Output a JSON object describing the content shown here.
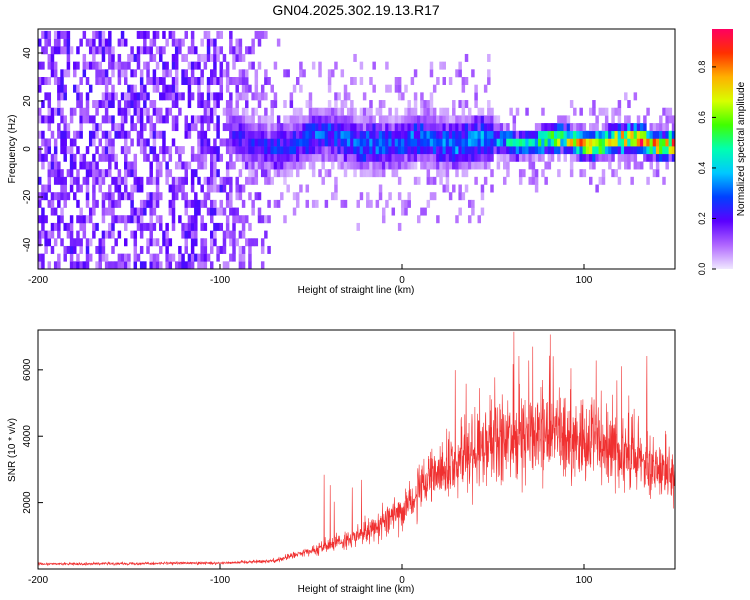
{
  "title": "GN04.2025.302.19.13.R17",
  "chart_data": [
    {
      "type": "heatmap",
      "xlabel": "Height of straight line (km)",
      "ylabel": "Frequency (Hz)",
      "xlim": [
        -200,
        150
      ],
      "ylim": [
        -50,
        50
      ],
      "x_ticks": [
        -200,
        -100,
        0,
        100
      ],
      "x_tick_labels": [
        "-200",
        "-100",
        "0",
        "100"
      ],
      "y_ticks": [
        -40,
        -20,
        0,
        20,
        40
      ],
      "y_tick_labels": [
        "-40",
        "-20",
        "0",
        "20",
        "40"
      ],
      "colorbar": {
        "label": "Normalized spectral amplitude",
        "range": [
          0,
          0.95
        ],
        "ticks": [
          0,
          0.2,
          0.4,
          0.6,
          0.8
        ],
        "tick_labels": [
          "0.0",
          "0.2",
          "0.4",
          "0.6",
          "0.8"
        ],
        "colormap": [
          "#f0e8ff",
          "#b066ff",
          "#5a00ff",
          "#0040ff",
          "#00c8ff",
          "#00ffb0",
          "#40ff00",
          "#d8ff00",
          "#ffb000",
          "#ff3000",
          "#ff0060"
        ]
      },
      "ridge": {
        "description_points": [
          {
            "x": -95,
            "amp": 0.2
          },
          {
            "x": -50,
            "amp": 0.3
          },
          {
            "x": 0,
            "amp": 0.32
          },
          {
            "x": 50,
            "amp": 0.35
          },
          {
            "x": 100,
            "amp": 0.75
          },
          {
            "x": 150,
            "amp": 0.85
          }
        ],
        "center_freq": 1.5,
        "width_hz": 14
      }
    },
    {
      "type": "line",
      "series": [
        {
          "name": "",
          "color": "#f03030"
        }
      ],
      "xlabel": "Height of straight line (km)",
      "ylabel": "SNR (10 * v/v)",
      "xlim": [
        -200,
        150
      ],
      "ylim": [
        0,
        7200
      ],
      "x_ticks": [
        -200,
        -100,
        0,
        100
      ],
      "x_tick_labels": [
        "-200",
        "-100",
        "0",
        "100"
      ],
      "y_ticks": [
        2000,
        4000,
        6000
      ],
      "y_tick_labels": [
        "2000",
        "4000",
        "6000"
      ],
      "envelope": [
        {
          "x": -200,
          "mean": 150
        },
        {
          "x": -100,
          "mean": 180
        },
        {
          "x": -70,
          "mean": 250
        },
        {
          "x": -40,
          "mean": 700
        },
        {
          "x": -20,
          "mean": 1100
        },
        {
          "x": 0,
          "mean": 1800
        },
        {
          "x": 20,
          "mean": 2900
        },
        {
          "x": 50,
          "mean": 3900
        },
        {
          "x": 80,
          "mean": 4000
        },
        {
          "x": 110,
          "mean": 3800
        },
        {
          "x": 130,
          "mean": 3300
        },
        {
          "x": 150,
          "mean": 2900
        }
      ]
    }
  ]
}
